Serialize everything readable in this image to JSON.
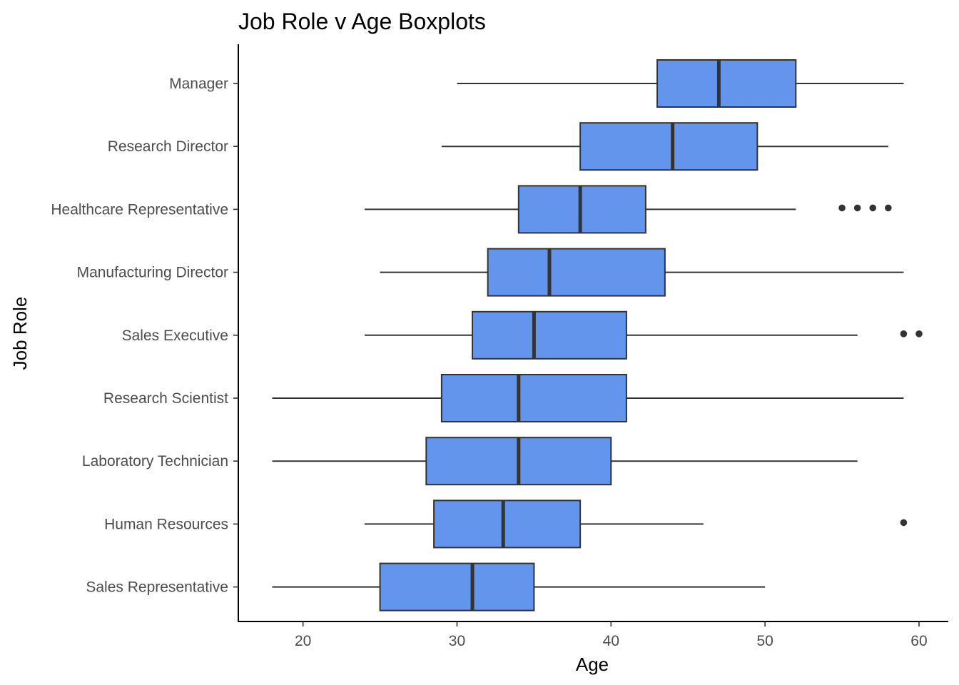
{
  "chart_data": {
    "type": "boxplot",
    "title": "Job Role v Age Boxplots",
    "xlabel": "Age",
    "ylabel": "Job Role",
    "xlim": [
      15.8,
      61.9
    ],
    "xticks": [
      20,
      30,
      40,
      50,
      60
    ],
    "box_color": "#6495ED",
    "outline_color": "#333333",
    "grid": false,
    "categories": [
      "Manager",
      "Research Director",
      "Healthcare Representative",
      "Manufacturing Director",
      "Sales Executive",
      "Research Scientist",
      "Laboratory Technician",
      "Human Resources",
      "Sales Representative"
    ],
    "boxes": [
      {
        "min": 30,
        "q1": 43,
        "median": 47,
        "q3": 52,
        "max": 59,
        "outliers": []
      },
      {
        "min": 29,
        "q1": 38,
        "median": 44,
        "q3": 49.5,
        "max": 58,
        "outliers": []
      },
      {
        "min": 24,
        "q1": 34,
        "median": 38,
        "q3": 42.25,
        "max": 52,
        "outliers": [
          55,
          56,
          57,
          58
        ]
      },
      {
        "min": 25,
        "q1": 32,
        "median": 36,
        "q3": 43.5,
        "max": 59,
        "outliers": []
      },
      {
        "min": 24,
        "q1": 31,
        "median": 35,
        "q3": 41,
        "max": 56,
        "outliers": [
          59,
          60
        ]
      },
      {
        "min": 18,
        "q1": 29,
        "median": 34,
        "q3": 41,
        "max": 59,
        "outliers": []
      },
      {
        "min": 18,
        "q1": 28,
        "median": 34,
        "q3": 40,
        "max": 56,
        "outliers": []
      },
      {
        "min": 24,
        "q1": 28.5,
        "median": 33,
        "q3": 38,
        "max": 46,
        "outliers": [
          59
        ]
      },
      {
        "min": 18,
        "q1": 25,
        "median": 31,
        "q3": 35,
        "max": 50,
        "outliers": []
      }
    ]
  }
}
